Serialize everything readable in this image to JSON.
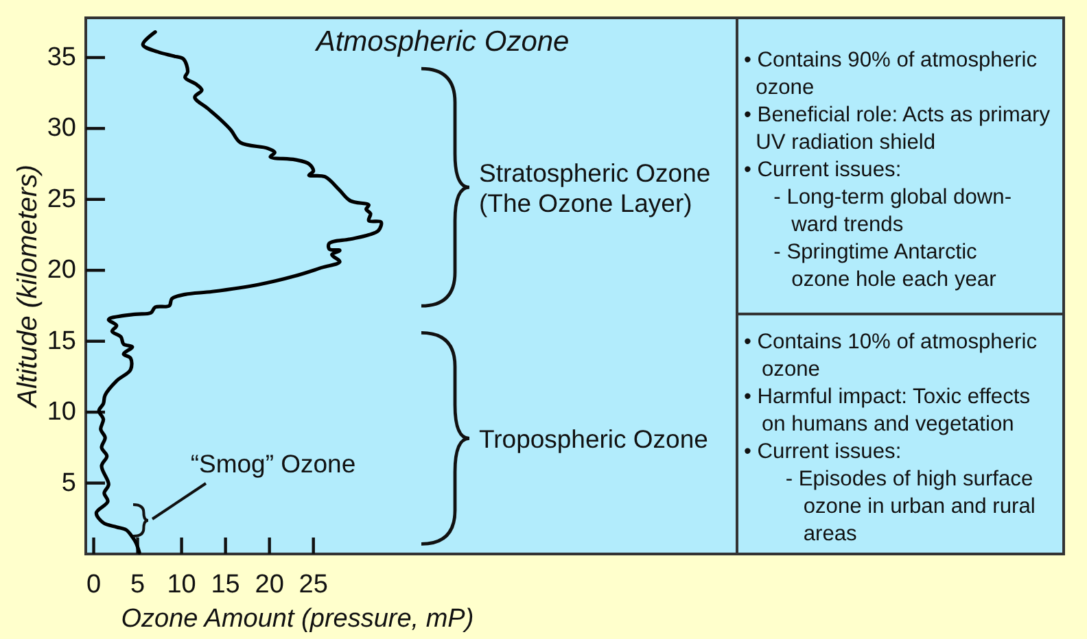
{
  "chart_data": {
    "type": "line",
    "title": "Atmospheric Ozone",
    "xlabel": "Ozone Amount (pressure, mP)",
    "ylabel": "Altitude (kilometers)",
    "xlim": [
      -0.9,
      73.2
    ],
    "xticks": [
      0,
      5,
      10,
      15,
      20,
      25
    ],
    "ylim": [
      0,
      37.8
    ],
    "yticks": [
      5,
      10,
      15,
      20,
      25,
      30,
      35
    ],
    "series": [
      {
        "color": "#000000",
        "x": [
          5.2,
          4.8,
          4.4,
          3.7,
          2.6,
          1.1,
          0.3,
          1.6,
          1.2,
          1.7,
          0.9,
          1.5,
          0.9,
          1.3,
          0.8,
          1.1,
          0.6,
          1.1,
          1.3,
          2.6,
          4.2,
          4.2,
          3.4,
          4.4,
          3.4,
          3.1,
          2.1,
          2.6,
          1.7,
          1.8,
          4.7,
          6.5,
          7.0,
          8.6,
          8.9,
          10.4,
          13.5,
          18.8,
          22.9,
          26.0,
          28.0,
          27.1,
          28.0,
          26.8,
          26.8,
          29.2,
          31.3,
          32.4,
          32.7,
          31.3,
          31.5,
          31.0,
          31.3,
          29.2,
          27.9,
          26.3,
          24.5,
          25.0,
          24.5,
          22.9,
          20.1,
          20.6,
          19.8,
          16.7,
          15.6,
          14.3,
          13.0,
          11.5,
          12.3,
          11.7,
          10.4,
          10.7,
          10.2,
          9.1,
          7.3,
          5.6,
          7.0
        ],
        "values": [
          0.1,
          0.8,
          1.2,
          1.7,
          1.9,
          2.2,
          2.9,
          3.7,
          4.3,
          4.9,
          6.2,
          6.9,
          7.5,
          8.2,
          8.8,
          9.5,
          10.1,
          10.6,
          11.2,
          12.2,
          13.0,
          13.8,
          14.1,
          14.6,
          14.8,
          15.3,
          15.7,
          16.1,
          16.5,
          16.6,
          16.9,
          17.0,
          17.4,
          17.5,
          18.0,
          18.3,
          18.5,
          19.0,
          19.6,
          20.2,
          20.6,
          21.1,
          21.4,
          21.5,
          21.9,
          22.2,
          22.5,
          22.8,
          23.4,
          23.5,
          24.0,
          24.3,
          24.6,
          24.9,
          25.7,
          26.6,
          26.7,
          27.0,
          27.5,
          27.8,
          28.0,
          28.3,
          28.6,
          29.0,
          29.9,
          30.7,
          31.4,
          32.2,
          32.7,
          33.1,
          33.6,
          34.0,
          34.9,
          35.1,
          35.4,
          35.9,
          36.8
        ]
      }
    ],
    "annotations": [
      "Stratospheric Ozone\n(The Ozone Layer)",
      "Tropospheric Ozone",
      "“Smog” Ozone",
      "• Contains 90% of atmospheric\n  ozone\n• Beneficial role: Acts as primary\n  UV radiation shield\n• Current issues:\n     - Long-term global down-\n        ward trends\n     - Springtime Antarctic\n        ozone hole each year",
      "• Contains 10% of atmospheric\n   ozone\n• Harmful impact: Toxic effects\n   on humans and vegetation\n• Current issues:\n       - Episodes of high surface\n          ozone in urban and rural\n          areas"
    ]
  }
}
